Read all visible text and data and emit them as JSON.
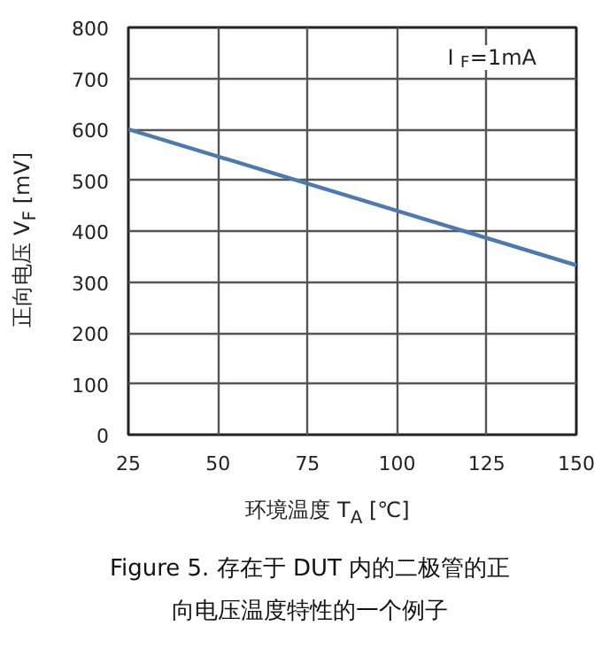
{
  "chart_data": {
    "type": "line",
    "title": "Figure 5. 存在于 DUT 内的二极管的正向电压温度特性的一个例子",
    "xlabel": "环境温度 T$_{A}$ [℃]",
    "ylabel": "正向电压 V$_{F}$ [mV]",
    "annotations": [
      "I$_{F}$=1mA"
    ],
    "x": [
      25,
      150
    ],
    "series": [
      {
        "color": "#4a7ab0",
        "values": [
          600,
          333
        ]
      }
    ],
    "xlim": [
      25,
      150
    ],
    "ylim": [
      0,
      800
    ],
    "xticks": [
      25,
      50,
      75,
      100,
      125,
      150
    ],
    "yticks": [
      0,
      100,
      200,
      300,
      400,
      500,
      600,
      700,
      800
    ],
    "grid": true,
    "line_style": "solid",
    "marker": "none"
  }
}
